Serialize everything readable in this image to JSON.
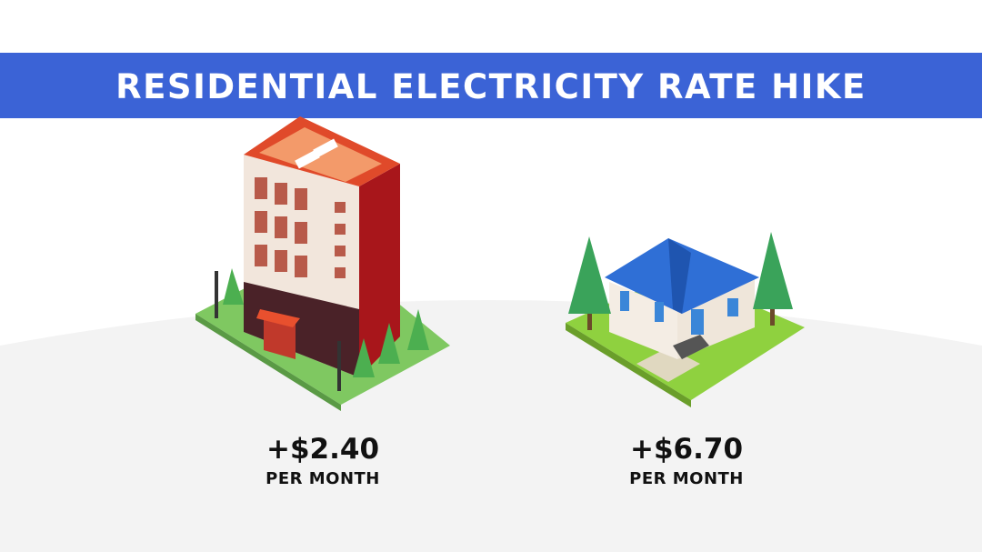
{
  "header": {
    "title": "RESIDENTIAL ELECTRICITY RATE HIKE"
  },
  "items": [
    {
      "amount": "+$2.40",
      "unit": "PER MONTH"
    },
    {
      "amount": "+$6.70",
      "unit": "PER MONTH"
    }
  ]
}
